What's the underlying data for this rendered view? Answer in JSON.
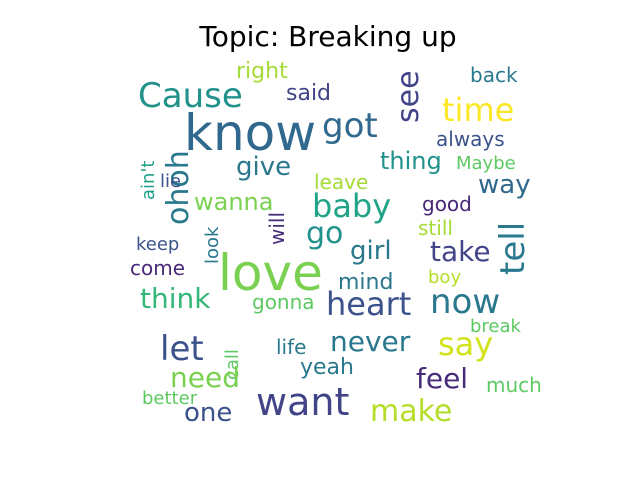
{
  "title": "Topic: Breaking up",
  "words": [
    {
      "text": "know",
      "color": "#31688e"
    },
    {
      "text": "love",
      "color": "#7ad151"
    },
    {
      "text": "Cause",
      "color": "#21918c"
    },
    {
      "text": "got",
      "color": "#31688e"
    },
    {
      "text": "see",
      "color": "#414487"
    },
    {
      "text": "time",
      "color": "#fde725"
    },
    {
      "text": "right",
      "color": "#a5db36"
    },
    {
      "text": "said",
      "color": "#414487"
    },
    {
      "text": "back",
      "color": "#2a788e"
    },
    {
      "text": "always",
      "color": "#3b528b"
    },
    {
      "text": "ohoh",
      "color": "#2a788e"
    },
    {
      "text": "ain't",
      "color": "#1fa188"
    },
    {
      "text": "give",
      "color": "#2a788e"
    },
    {
      "text": "thing",
      "color": "#21918c"
    },
    {
      "text": "Maybe",
      "color": "#5ec962"
    },
    {
      "text": "way",
      "color": "#31688e"
    },
    {
      "text": "lie",
      "color": "#3b528b"
    },
    {
      "text": "leave",
      "color": "#a5db36"
    },
    {
      "text": "baby",
      "color": "#20a386"
    },
    {
      "text": "good",
      "color": "#482878"
    },
    {
      "text": "tell",
      "color": "#2a788e"
    },
    {
      "text": "wanna",
      "color": "#7ad151"
    },
    {
      "text": "will",
      "color": "#472c7a"
    },
    {
      "text": "still",
      "color": "#a5db36"
    },
    {
      "text": "go",
      "color": "#21918c"
    },
    {
      "text": "look",
      "color": "#2a788e"
    },
    {
      "text": "keep",
      "color": "#3b528b"
    },
    {
      "text": "girl",
      "color": "#2a788e"
    },
    {
      "text": "take",
      "color": "#414487"
    },
    {
      "text": "come",
      "color": "#482878"
    },
    {
      "text": "mind",
      "color": "#2a788e"
    },
    {
      "text": "boy",
      "color": "#b5de2b"
    },
    {
      "text": "think",
      "color": "#35b779"
    },
    {
      "text": "gonna",
      "color": "#5ec962"
    },
    {
      "text": "heart",
      "color": "#3b528b"
    },
    {
      "text": "now",
      "color": "#2a788e"
    },
    {
      "text": "break",
      "color": "#5ec962"
    },
    {
      "text": "let",
      "color": "#3b528b"
    },
    {
      "text": "call",
      "color": "#5ec962"
    },
    {
      "text": "life",
      "color": "#2a788e"
    },
    {
      "text": "never",
      "color": "#2a788e"
    },
    {
      "text": "say",
      "color": "#d2e21b"
    },
    {
      "text": "need",
      "color": "#7ad151"
    },
    {
      "text": "yeah",
      "color": "#2a788e"
    },
    {
      "text": "feel",
      "color": "#472c7a"
    },
    {
      "text": "much",
      "color": "#5ec962"
    },
    {
      "text": "better",
      "color": "#5ec962"
    },
    {
      "text": "one",
      "color": "#3b528b"
    },
    {
      "text": "want",
      "color": "#414487"
    },
    {
      "text": "make",
      "color": "#b5de2b"
    }
  ]
}
